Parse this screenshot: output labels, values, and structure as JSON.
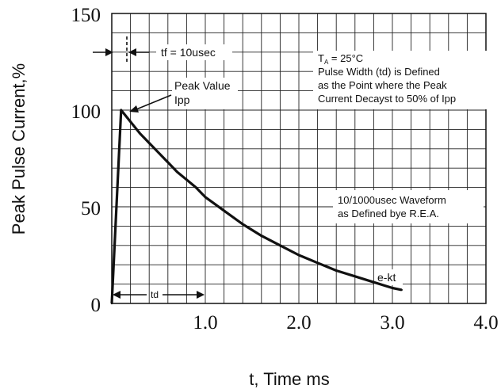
{
  "chart_data": {
    "type": "line",
    "xlabel": "t, Time ms",
    "ylabel": "Peak Pulse Current,%",
    "xlim": [
      0,
      4.0
    ],
    "ylim": [
      0,
      150
    ],
    "grid": true,
    "x_ticks": [
      "1.0",
      "2.0",
      "3.0",
      "4.0"
    ],
    "y_ticks": [
      "0",
      "50",
      "100",
      "150"
    ],
    "series": [
      {
        "color": "#111111",
        "points": [
          {
            "x": 0.0,
            "y": 0
          },
          {
            "x": 0.1,
            "y": 100
          },
          {
            "x": 0.2,
            "y": 94
          },
          {
            "x": 0.3,
            "y": 88
          },
          {
            "x": 0.4,
            "y": 83
          },
          {
            "x": 0.5,
            "y": 78
          },
          {
            "x": 0.6,
            "y": 73
          },
          {
            "x": 0.7,
            "y": 68
          },
          {
            "x": 0.8,
            "y": 64
          },
          {
            "x": 0.9,
            "y": 60
          },
          {
            "x": 1.0,
            "y": 55
          },
          {
            "x": 1.2,
            "y": 48
          },
          {
            "x": 1.4,
            "y": 41
          },
          {
            "x": 1.6,
            "y": 35
          },
          {
            "x": 1.8,
            "y": 30
          },
          {
            "x": 2.0,
            "y": 25
          },
          {
            "x": 2.2,
            "y": 21
          },
          {
            "x": 2.4,
            "y": 17
          },
          {
            "x": 2.6,
            "y": 14
          },
          {
            "x": 2.8,
            "y": 11
          },
          {
            "x": 3.0,
            "y": 8
          },
          {
            "x": 3.1,
            "y": 7
          }
        ]
      }
    ],
    "annotations": {
      "tf": "tf = 10usec",
      "peak_line1": "Peak Value",
      "peak_line2": "Ipp",
      "ta_prefix": "T",
      "ta_sub": "A",
      "ta_value": " = 25°C",
      "note_line1": "Pulse Width (td) is Defined",
      "note_line2": "as the Point where the Peak",
      "note_line3": "Current Decayst to 50% of Ipp",
      "waveform_line1": "10/1000usec Waveform",
      "waveform_line2": "as Defined bye R.E.A.",
      "ekt": "e-kt",
      "td": "td"
    }
  }
}
